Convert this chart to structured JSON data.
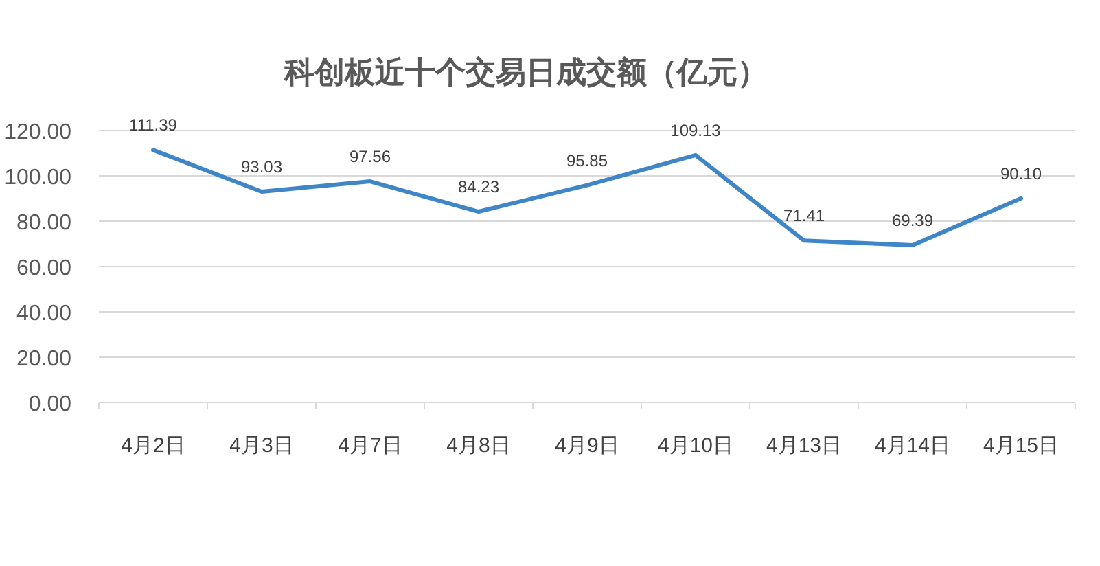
{
  "chart_data": {
    "type": "line",
    "title": "科创板近十个交易日成交额（亿元）",
    "categories": [
      "4月2日",
      "4月3日",
      "4月7日",
      "4月8日",
      "4月9日",
      "4月10日",
      "4月13日",
      "4月14日",
      "4月15日"
    ],
    "values": [
      111.39,
      93.03,
      97.56,
      84.23,
      95.85,
      109.13,
      71.41,
      69.39,
      90.1
    ],
    "value_labels": [
      "111.39",
      "93.03",
      "97.56",
      "84.23",
      "95.85",
      "109.13",
      "71.41",
      "69.39",
      "90.10"
    ],
    "color": "#3f86c8",
    "ylim": [
      0,
      120
    ],
    "yticks": [
      {
        "value": 0,
        "label": "0.00"
      },
      {
        "value": 20,
        "label": "20.00"
      },
      {
        "value": 40,
        "label": "40.00"
      },
      {
        "value": 60,
        "label": "60.00"
      },
      {
        "value": 80,
        "label": "80.00"
      },
      {
        "value": 100,
        "label": "100.00"
      },
      {
        "value": 120,
        "label": "120.00"
      }
    ],
    "grid": "y"
  }
}
